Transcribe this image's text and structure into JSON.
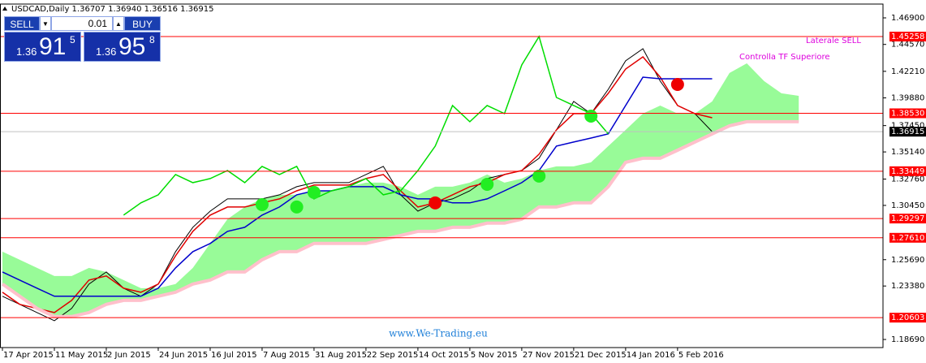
{
  "chart_data": {
    "type": "ichimoku",
    "title": "USDCAD,Daily  1.36707 1.36940 1.36516 1.36915",
    "categories": [
      "17 Apr 2015",
      null,
      null,
      "11 May 2015",
      null,
      null,
      "2 Jun 2015",
      null,
      null,
      "24 Jun 2015",
      null,
      null,
      "16 Jul 2015",
      null,
      null,
      "7 Aug 2015",
      null,
      null,
      "31 Aug 2015",
      null,
      null,
      "22 Sep 2015",
      null,
      null,
      "14 Oct 2015",
      null,
      null,
      "5 Nov 2015",
      null,
      null,
      "27 Nov 2015",
      null,
      null,
      "21 Dec 2015",
      null,
      null,
      "14 Jan 2016",
      null,
      null,
      "5 Feb 2016",
      null,
      null,
      null,
      null,
      null,
      null,
      null,
      null,
      null,
      null,
      null,
      null
    ],
    "series": [
      {
        "color": "#000000",
        "values": [
          1.2248,
          1.2177,
          1.2105,
          1.2034,
          1.2141,
          1.2355,
          1.2461,
          1.2319,
          1.2248,
          1.2355,
          1.2639,
          1.2853,
          1.2995,
          1.3102,
          1.3102,
          1.3102,
          1.3138,
          1.3209,
          1.3245,
          1.3245,
          1.3245,
          1.3316,
          1.3387,
          1.3138,
          1.2995,
          1.3067,
          1.3102,
          1.3173,
          1.328,
          1.3316,
          1.3351,
          1.3458,
          1.3707,
          1.3957,
          1.385,
          1.4063,
          1.4313,
          1.4419,
          1.4135,
          1.3921,
          1.385,
          1.3692,
          null,
          null,
          null,
          null,
          null,
          null,
          null,
          null,
          null,
          null
        ]
      },
      {
        "color": "#e00000",
        "values": [
          1.2283,
          1.2177,
          1.2141,
          1.2105,
          1.2212,
          1.239,
          1.2426,
          1.2319,
          1.2283,
          1.2355,
          1.2603,
          1.2817,
          1.296,
          1.3031,
          1.3031,
          1.3067,
          1.3102,
          1.3173,
          1.3223,
          1.3223,
          1.3223,
          1.328,
          1.3316,
          1.3173,
          1.3031,
          1.3067,
          1.3138,
          1.3209,
          1.3245,
          1.3316,
          1.3351,
          1.3494,
          1.3707,
          1.385,
          1.385,
          1.4028,
          1.4241,
          1.4348,
          1.417,
          1.3921,
          1.385,
          1.3814,
          null,
          null,
          null,
          null,
          null,
          null,
          null,
          null,
          null,
          null
        ]
      },
      {
        "color": "#0000cc",
        "values": [
          1.2461,
          1.239,
          1.2319,
          1.2248,
          1.2248,
          1.2248,
          1.2248,
          1.2248,
          1.2248,
          1.2319,
          1.2497,
          1.2639,
          1.2711,
          1.2817,
          1.2853,
          1.296,
          1.3031,
          1.3138,
          1.3173,
          1.3173,
          1.3209,
          1.3209,
          1.3209,
          1.3138,
          1.3102,
          1.3102,
          1.3067,
          1.3067,
          1.3102,
          1.3173,
          1.3245,
          1.3351,
          1.3565,
          1.3601,
          1.3636,
          1.3672,
          1.3921,
          1.417,
          1.4156,
          1.4156,
          1.4156,
          1.4156,
          null,
          null,
          null,
          null,
          null,
          null,
          null,
          null,
          null,
          null
        ]
      },
      {
        "color": "#00dd00",
        "values": [
          null,
          null,
          null,
          null,
          null,
          null,
          null,
          1.296,
          1.3067,
          1.3138,
          1.3316,
          1.3245,
          1.328,
          1.3351,
          1.3245,
          1.3387,
          1.3316,
          1.3387,
          1.3102,
          1.3173,
          1.3209,
          1.328,
          1.3138,
          1.3173,
          1.3351,
          1.3565,
          1.3921,
          1.3779,
          1.3921,
          1.385,
          1.4277,
          1.4526,
          1.3992,
          1.3921,
          1.385,
          1.3672,
          null,
          null,
          null,
          null,
          null,
          null,
          null,
          null,
          null,
          null,
          null,
          null,
          null,
          null,
          null,
          null
        ]
      },
      {
        "color": "#98fb98",
        "values": [
          1.2639,
          1.2568,
          1.2497,
          1.2426,
          1.2426,
          1.2497,
          1.2461,
          1.239,
          1.2319,
          1.2319,
          1.2355,
          1.2497,
          1.2711,
          1.2924,
          1.3031,
          1.3102,
          1.3138,
          1.3138,
          1.3173,
          1.3173,
          1.3209,
          1.3245,
          1.3245,
          1.3209,
          1.3138,
          1.3209,
          1.3209,
          1.3245,
          1.3316,
          1.3245,
          1.328,
          1.3351,
          1.3387,
          1.3387,
          1.3423,
          1.3565,
          1.3707,
          1.385,
          1.3921,
          1.385,
          1.385,
          1.3957,
          1.4206,
          1.4291,
          1.4135,
          1.4028,
          1.4006,
          null,
          null,
          null,
          null,
          null
        ]
      },
      {
        "color": "#ffc0cb",
        "values": [
          1.2355,
          1.2248,
          1.2141,
          1.207,
          1.207,
          1.2105,
          1.2177,
          1.2212,
          1.2212,
          1.2248,
          1.2283,
          1.2355,
          1.239,
          1.2461,
          1.2461,
          1.2568,
          1.2639,
          1.2639,
          1.2711,
          1.2711,
          1.2711,
          1.2711,
          1.2746,
          1.2782,
          1.2817,
          1.2817,
          1.2853,
          1.2853,
          1.2889,
          1.2889,
          1.2924,
          1.3031,
          1.3031,
          1.3067,
          1.3067,
          1.3209,
          1.3423,
          1.3458,
          1.3458,
          1.3529,
          1.3601,
          1.3672,
          1.3743,
          1.3779,
          1.3779,
          1.3779,
          1.3779,
          null,
          null,
          null,
          null,
          null
        ]
      },
      {
        "color": "#22ee22",
        "marker": true,
        "values": [
          null,
          null,
          null,
          null,
          null,
          null,
          null,
          null,
          null,
          null,
          null,
          null,
          null,
          null,
          null,
          1.3052,
          null,
          1.3031,
          1.3159,
          null,
          null,
          null,
          null,
          null,
          null,
          null,
          null,
          null,
          1.323,
          null,
          null,
          1.3302,
          null,
          null,
          1.3828,
          null,
          null,
          null,
          null,
          null,
          null,
          null,
          null,
          null,
          null,
          null,
          null,
          null,
          null,
          null,
          null,
          null
        ]
      },
      {
        "color": "#ee0000",
        "marker": true,
        "values": [
          null,
          null,
          null,
          null,
          null,
          null,
          null,
          null,
          null,
          null,
          null,
          null,
          null,
          null,
          null,
          null,
          null,
          null,
          null,
          null,
          null,
          null,
          null,
          null,
          null,
          1.3067,
          null,
          null,
          null,
          null,
          null,
          null,
          null,
          null,
          null,
          null,
          null,
          null,
          null,
          1.4106,
          null,
          null,
          null,
          null,
          null,
          null,
          null,
          null,
          null,
          null,
          null,
          null
        ]
      }
    ],
    "ylim": [
      1.1798,
      1.4811
    ],
    "yticks": [
      {
        "value": 1.469,
        "label": "1.46900"
      },
      {
        "value": 1.4457,
        "label": "1.44570"
      },
      {
        "value": 1.4221,
        "label": "1.42210"
      },
      {
        "value": 1.3988,
        "label": "1.39880"
      },
      {
        "value": 1.3745,
        "label": "1.37450"
      },
      {
        "value": 1.3514,
        "label": "1.35140"
      },
      {
        "value": 1.3276,
        "label": "1.32760"
      },
      {
        "value": 1.3045,
        "label": "1.30450"
      },
      {
        "value": 1.2569,
        "label": "1.25690"
      },
      {
        "value": 1.2338,
        "label": "1.23380"
      },
      {
        "value": 1.1869,
        "label": "1.18690"
      }
    ],
    "levels": [
      1.45258,
      {
        "value": 1.3853,
        "label": "1.38530"
      },
      1.33449,
      1.29297,
      {
        "value": 1.2761,
        "label": "1.27610"
      },
      1.20603
    ],
    "level_color": "#ff0000",
    "current_price": 1.36915,
    "annotations": [
      "Laterale SELL",
      "Controlla TF Superiore"
    ],
    "annotation_color": "#dd00dd",
    "watermark": "www.We-Trading.eu"
  },
  "trade_panel": {
    "sell": "SELL",
    "buy": "BUY",
    "lot": "0.01",
    "sell_price": {
      "big": "1.36",
      "main": "91",
      "sup": "5"
    },
    "buy_price": {
      "big": "1.36",
      "main": "95",
      "sup": "8"
    }
  }
}
